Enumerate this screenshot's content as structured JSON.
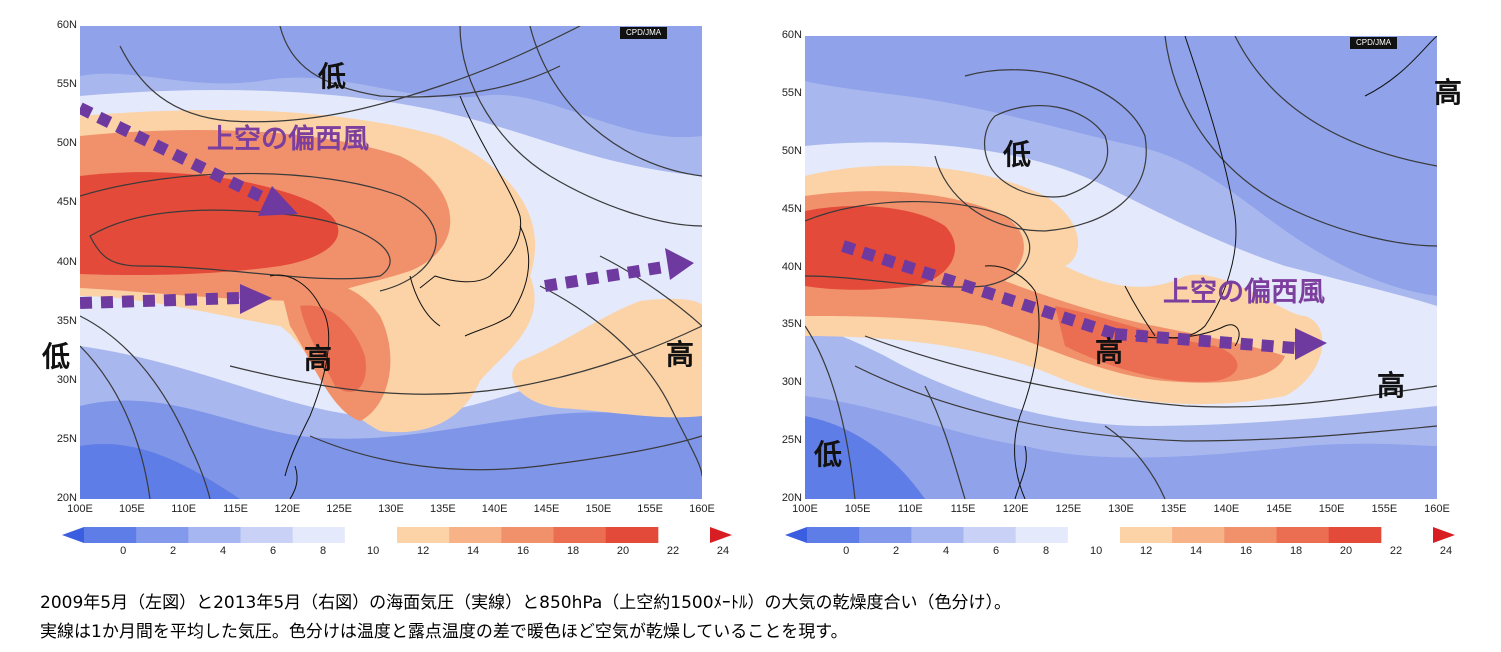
{
  "credit": "CPD/JMA",
  "lat_ticks": [
    "60N",
    "55N",
    "50N",
    "45N",
    "40N",
    "35N",
    "30N",
    "25N",
    "20N"
  ],
  "lon_ticks": [
    "100E",
    "105E",
    "110E",
    "115E",
    "120E",
    "125E",
    "130E",
    "135E",
    "140E",
    "145E",
    "150E",
    "155E",
    "160E"
  ],
  "colorbar_ticks": [
    "0",
    "2",
    "4",
    "6",
    "8",
    "10",
    "12",
    "14",
    "16",
    "18",
    "20",
    "22",
    "24"
  ],
  "colorbar_colors": [
    "#3b5ee0",
    "#5f7de6",
    "#8299ec",
    "#a6b6f1",
    "#c9d2f6",
    "#e4e9fb",
    "#ffffff",
    "#fbd3a6",
    "#f7b287",
    "#f1916c",
    "#eb6e52",
    "#e44a3a",
    "#d81e23"
  ],
  "left": {
    "labels": {
      "low_north": "低",
      "low_west": "低",
      "high_center": "高",
      "high_east": "高",
      "wind": "上空の偏西風"
    }
  },
  "right": {
    "labels": {
      "low_north": "低",
      "low_sw": "低",
      "high_center": "高",
      "high_ne": "高",
      "high_east": "高",
      "wind": "上空の偏西風"
    }
  },
  "colors": {
    "arrow": "#6f3aa0",
    "wind_text": "#7d3f9e"
  },
  "caption": {
    "line1": "2009年5月（左図）と2013年5月（右図）の海面気圧（実線）と850hPa（上空約1500ﾒｰﾄﾙ）の大気の乾燥度合い（色分け）。",
    "line2": "実線は1か月間を平均した気圧。色分けは温度と露点温度の差で暖色ほど空気が乾燥していることを現す。"
  }
}
